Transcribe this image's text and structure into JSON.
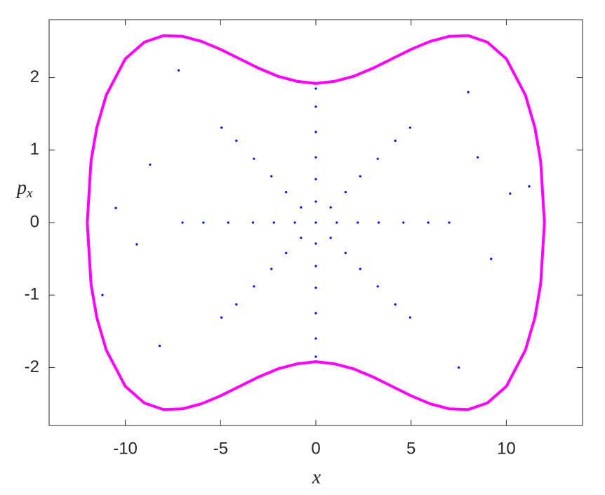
{
  "chart_data": {
    "type": "scatter",
    "x_label": "x",
    "y_label": "p",
    "y_label_sub": "x",
    "xlim": [
      -14,
      14
    ],
    "ylim": [
      -2.8,
      2.8
    ],
    "xticks": [
      -10,
      -5,
      0,
      5,
      10
    ],
    "yticks": [
      -2,
      -1,
      0,
      1,
      2
    ],
    "series": [
      {
        "mode": "markers",
        "color": "#0000ff",
        "x": [
          0,
          1.1,
          0.78,
          0,
          -0.78,
          -1.1,
          -0.78,
          0,
          0.78,
          2.2,
          1.56,
          0,
          -1.56,
          -2.2,
          -1.56,
          0,
          1.56,
          3.3,
          2.33,
          0,
          -2.33,
          -3.3,
          -2.33,
          0,
          2.33,
          4.6,
          3.25,
          0,
          -3.25,
          -4.6,
          -3.25,
          0,
          3.25,
          5.9,
          4.17,
          0,
          -4.17,
          -5.9,
          -4.17,
          0,
          4.17,
          7.0,
          4.95,
          0,
          -4.95,
          -7.0,
          -4.95,
          0,
          4.95,
          8.5,
          -8.7,
          9.2,
          -9.4,
          8.0,
          -8.2,
          7.5,
          -7.2,
          10.2,
          -10.5,
          11.2,
          -11.2
        ],
        "values": [
          0,
          0,
          0.21,
          0.29,
          0.21,
          0,
          -0.21,
          -0.29,
          -0.21,
          0,
          0.42,
          0.6,
          0.42,
          0,
          -0.42,
          -0.6,
          -0.42,
          0,
          0.64,
          0.9,
          0.64,
          0,
          -0.64,
          -0.9,
          -0.64,
          0,
          0.88,
          1.25,
          0.88,
          0,
          -0.88,
          -1.25,
          -0.88,
          0,
          1.13,
          1.6,
          1.13,
          0,
          -1.13,
          -1.6,
          -1.13,
          0,
          1.31,
          1.85,
          1.31,
          0,
          -1.31,
          -1.85,
          -1.31,
          0.9,
          0.8,
          -0.5,
          -0.3,
          1.8,
          -1.7,
          -2.0,
          2.1,
          0.4,
          0.2,
          0.5,
          -1.0
        ]
      },
      {
        "mode": "line",
        "color": "#ff00ff",
        "x": [
          -12,
          -11.8,
          -11.5,
          -11,
          -10,
          -9,
          -8,
          -7,
          -6,
          -5,
          -4,
          -3,
          -2,
          -1,
          0,
          1,
          2,
          3,
          4,
          5,
          6,
          7,
          8,
          9,
          10,
          11,
          11.5,
          11.8,
          12,
          11.8,
          11.5,
          11,
          10,
          9,
          8,
          7,
          6,
          5,
          4,
          3,
          2,
          1,
          0,
          -1,
          -2,
          -3,
          -4,
          -5,
          -6,
          -7,
          -8,
          -9,
          -10,
          -11,
          -11.5,
          -11.8,
          -12
        ],
        "values": [
          0,
          0.85,
          1.31,
          1.76,
          2.26,
          2.49,
          2.58,
          2.57,
          2.5,
          2.39,
          2.26,
          2.13,
          2.02,
          1.95,
          1.92,
          1.95,
          2.02,
          2.13,
          2.26,
          2.39,
          2.5,
          2.57,
          2.58,
          2.49,
          2.26,
          1.76,
          1.31,
          0.85,
          0,
          -0.85,
          -1.31,
          -1.76,
          -2.26,
          -2.49,
          -2.58,
          -2.57,
          -2.5,
          -2.39,
          -2.26,
          -2.13,
          -2.02,
          -1.95,
          -1.92,
          -1.95,
          -2.02,
          -2.13,
          -2.26,
          -2.39,
          -2.5,
          -2.57,
          -2.58,
          -2.49,
          -2.26,
          -1.76,
          -1.31,
          -0.85,
          0
        ]
      }
    ]
  }
}
